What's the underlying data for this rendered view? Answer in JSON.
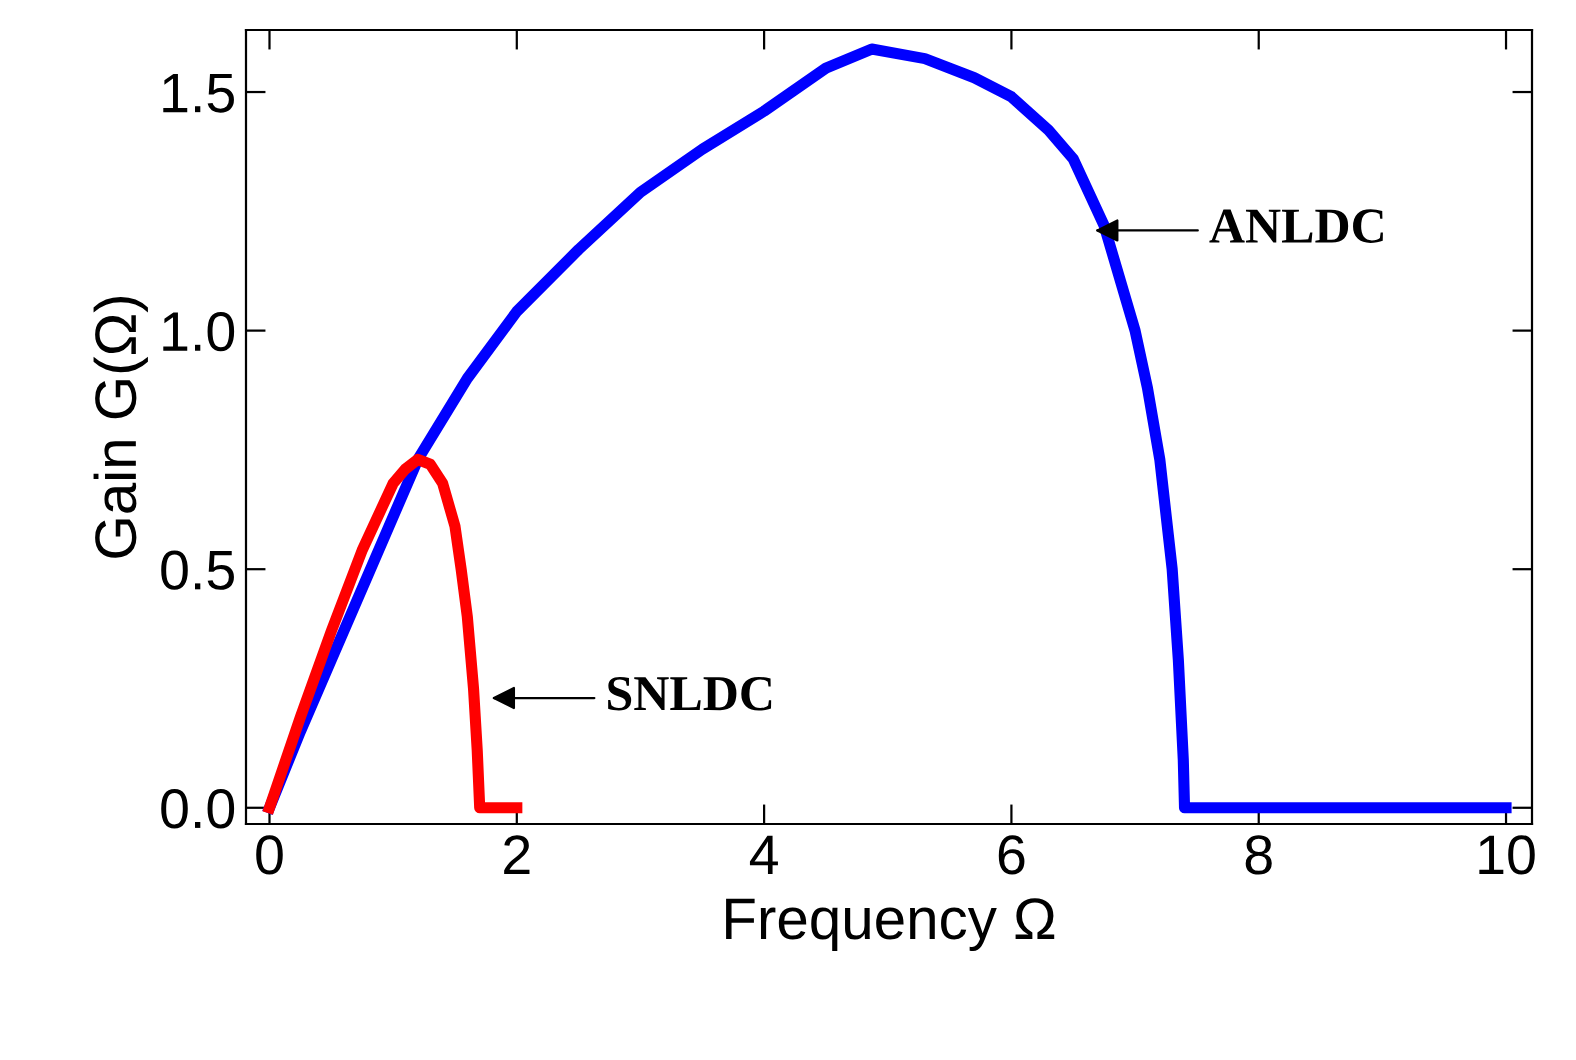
{
  "chart_data": {
    "type": "line",
    "xlabel": "Frequency Ω",
    "ylabel": "Gain G(Ω)",
    "xlim": [
      -0.19,
      10.21
    ],
    "ylim": [
      -0.034,
      1.63
    ],
    "xticks": [
      0,
      2,
      4,
      6,
      8,
      10
    ],
    "yticks": [
      {
        "value": 0,
        "label": "0.0"
      },
      {
        "value": 0.5,
        "label": "0.5"
      },
      {
        "value": 1.0,
        "label": "1.0"
      },
      {
        "value": 1.5,
        "label": "1.5"
      }
    ],
    "grid": false,
    "legend": false,
    "marker": "none",
    "line_style": "solid",
    "series": [
      {
        "color": "#0000ff",
        "x": [
          0,
          0.25,
          0.5,
          0.8,
          1.2,
          1.6,
          2,
          2.5,
          3,
          3.5,
          4,
          4.5,
          4.87,
          5.3,
          5.7,
          6,
          6.3,
          6.5,
          6.75,
          7,
          7.1,
          7.2,
          7.3,
          7.35,
          7.39,
          7.4,
          8,
          9,
          10
        ],
        "values": [
          0,
          0.16,
          0.31,
          0.49,
          0.73,
          0.9,
          1.04,
          1.17,
          1.29,
          1.38,
          1.46,
          1.55,
          1.59,
          1.57,
          1.53,
          1.49,
          1.42,
          1.36,
          1.22,
          1.0,
          0.88,
          0.73,
          0.5,
          0.31,
          0.1,
          0,
          0,
          0,
          0
        ]
      },
      {
        "color": "#ff0000",
        "x": [
          0,
          0.25,
          0.5,
          0.75,
          1.0,
          1.1,
          1.2,
          1.3,
          1.4,
          1.5,
          1.55,
          1.6,
          1.65,
          1.68,
          1.7,
          1.8,
          2.0
        ],
        "values": [
          0,
          0.19,
          0.37,
          0.54,
          0.68,
          0.71,
          0.73,
          0.72,
          0.68,
          0.59,
          0.5,
          0.4,
          0.25,
          0.12,
          0,
          0,
          0
        ]
      }
    ],
    "annotations": [
      {
        "text": "ANLDC",
        "x": 6.63,
        "y": 1.21
      },
      {
        "text": "SNLDC",
        "x": 1.75,
        "y": 0.23
      }
    ]
  }
}
